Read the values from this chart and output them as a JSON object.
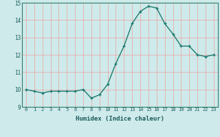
{
  "x": [
    0,
    1,
    2,
    3,
    4,
    5,
    6,
    7,
    8,
    9,
    10,
    11,
    12,
    13,
    14,
    15,
    16,
    17,
    18,
    19,
    20,
    21,
    22,
    23
  ],
  "y": [
    10.0,
    9.9,
    9.8,
    9.9,
    9.9,
    9.9,
    9.9,
    10.0,
    9.5,
    9.7,
    10.3,
    11.5,
    12.5,
    13.8,
    14.5,
    14.8,
    14.7,
    13.8,
    13.2,
    12.5,
    12.5,
    12.0,
    11.9,
    12.0
  ],
  "xlabel": "Humidex (Indice chaleur)",
  "ylim": [
    9,
    15
  ],
  "xlim": [
    -0.5,
    23.5
  ],
  "yticks": [
    9,
    10,
    11,
    12,
    13,
    14,
    15
  ],
  "xticks": [
    0,
    1,
    2,
    3,
    4,
    5,
    6,
    7,
    8,
    9,
    10,
    11,
    12,
    13,
    14,
    15,
    16,
    17,
    18,
    19,
    20,
    21,
    22,
    23
  ],
  "line_color": "#1a7a6e",
  "bg_color": "#ceeaea",
  "grid_color_major": "#f0a0a0",
  "grid_color_minor": "#f0c8c8"
}
